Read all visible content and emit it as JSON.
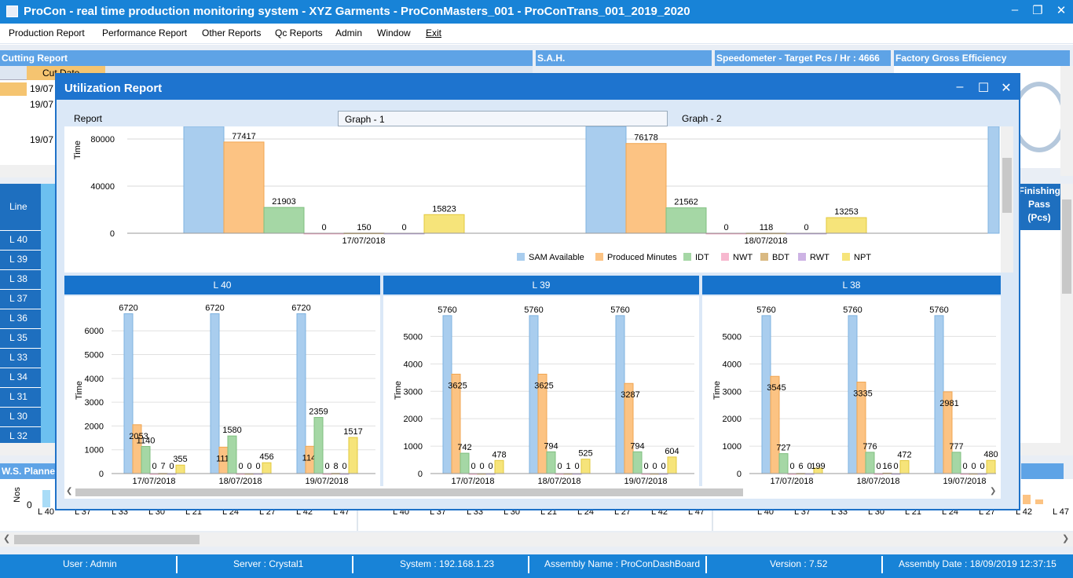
{
  "app": {
    "title": "ProCon - real time production monitoring system - XYZ Garments - ProConMasters_001 - ProConTrans_001_2019_2020"
  },
  "menu": [
    "Production Report",
    "Performance Report",
    "Other Reports",
    "Qc Reports",
    "Admin",
    "Window",
    "Exit"
  ],
  "background": {
    "cutting_report_title": "Cutting Report",
    "cutting_header_first": "Cut Date",
    "cutting_rows": [
      "19/07",
      "19/07",
      "19/07"
    ],
    "sah_title": "S.A.H.",
    "speedometer_title": "Speedometer - Target Pcs / Hr : 4666",
    "factory_eff_title": "Factory Gross Efficiency",
    "line_header": "Line",
    "lines": [
      "L 40",
      "L 39",
      "L 38",
      "L 37",
      "L 36",
      "L 35",
      "L 33",
      "L 34",
      "L 31",
      "L 30",
      "L 32"
    ],
    "finishing_header": "Finishing",
    "pass_header": "Pass",
    "pcs_header": "(Pcs)",
    "ws_planner_title": "W.S. Planne",
    "ws_ylabel": "Nos",
    "ws_zero": "0",
    "ws_xlabels_1": [
      "L 40",
      "L 37",
      "L 33",
      "L 30",
      "L 21",
      "L 24",
      "L 27",
      "L 42",
      "L 47"
    ],
    "ws_xlabels_2": [
      "L 40",
      "L 37",
      "L 33",
      "L 30",
      "L 21",
      "L 24",
      "L 27",
      "L 42",
      "L 47"
    ],
    "ws_xlabels_3": [
      "L 40",
      "L 37",
      "L 33",
      "L 30",
      "L 21",
      "L 24",
      "L 27",
      "L 42",
      "L 47"
    ]
  },
  "status": {
    "user": "User : Admin",
    "server": "Server : Crystal1",
    "system": "System : 192.168.1.23",
    "assembly": "Assembly Name : ProConDashBoard",
    "version": "Version : 7.52",
    "assembly_date": "Assembly Date : 18/09/2019 12:37:15"
  },
  "dialog": {
    "title": "Utilization Report",
    "tabs": [
      "Report",
      "Graph - 1",
      "Graph - 2"
    ],
    "active_tab": "Graph - 1",
    "legend": [
      "SAM Available",
      "Produced Minutes",
      "IDT",
      "NWT",
      "BDT",
      "RWT",
      "NPT"
    ],
    "series_colors": [
      "#a9cdee",
      "#fcc383",
      "#a5d7a5",
      "#f7b8cf",
      "#d9b982",
      "#cdb3e4",
      "#f6e47a"
    ],
    "panel_titles": [
      "L 40",
      "L 39",
      "L 38"
    ]
  },
  "chart_data": [
    {
      "type": "bar",
      "title": "",
      "ylabel": "Time",
      "xlabel": "",
      "categories": [
        "17/07/2018",
        "18/07/2018"
      ],
      "ylim": [
        0,
        90000
      ],
      "yticks": [
        0,
        40000,
        80000
      ],
      "series": [
        {
          "name": "SAM Available",
          "values": [
            null,
            null
          ]
        },
        {
          "name": "Produced Minutes",
          "values": [
            77417,
            76178
          ]
        },
        {
          "name": "IDT",
          "values": [
            21903,
            21562
          ]
        },
        {
          "name": "NWT",
          "values": [
            0,
            0
          ]
        },
        {
          "name": "BDT",
          "values": [
            150,
            118
          ]
        },
        {
          "name": "RWT",
          "values": [
            0,
            0
          ]
        },
        {
          "name": "NPT",
          "values": [
            15823,
            13253
          ]
        }
      ],
      "legend": "bottom-right"
    },
    {
      "type": "bar",
      "title": "L 40",
      "ylabel": "Time",
      "categories": [
        "17/07/2018",
        "18/07/2018",
        "19/07/2018"
      ],
      "ylim": [
        0,
        6800
      ],
      "yticks": [
        0,
        1000,
        2000,
        3000,
        4000,
        5000,
        6000
      ],
      "series": [
        {
          "name": "SAM Available",
          "values": [
            6720,
            6720,
            6720
          ]
        },
        {
          "name": "Produced Minutes",
          "values": [
            2053,
            1110,
            1146
          ]
        },
        {
          "name": "IDT",
          "values": [
            1140,
            1580,
            2359
          ]
        },
        {
          "name": "NWT",
          "values": [
            0,
            0,
            0
          ]
        },
        {
          "name": "BDT",
          "values": [
            7,
            0,
            8
          ]
        },
        {
          "name": "RWT",
          "values": [
            0,
            0,
            0
          ]
        },
        {
          "name": "NPT",
          "values": [
            355,
            456,
            1517
          ]
        }
      ]
    },
    {
      "type": "bar",
      "title": "L 39",
      "ylabel": "Time",
      "categories": [
        "17/07/2018",
        "18/07/2018",
        "19/07/2018"
      ],
      "ylim": [
        0,
        5900
      ],
      "yticks": [
        0,
        1000,
        2000,
        3000,
        4000,
        5000
      ],
      "series": [
        {
          "name": "SAM Available",
          "values": [
            5760,
            5760,
            5760
          ]
        },
        {
          "name": "Produced Minutes",
          "values": [
            3625,
            3625,
            3287
          ]
        },
        {
          "name": "IDT",
          "values": [
            742,
            794,
            794
          ]
        },
        {
          "name": "NWT",
          "values": [
            0,
            0,
            0
          ]
        },
        {
          "name": "BDT",
          "values": [
            0,
            1,
            0
          ]
        },
        {
          "name": "RWT",
          "values": [
            0,
            0,
            0
          ]
        },
        {
          "name": "NPT",
          "values": [
            478,
            525,
            604
          ]
        }
      ]
    },
    {
      "type": "bar",
      "title": "L 38",
      "ylabel": "Time",
      "categories": [
        "17/07/2018",
        "18/07/2018",
        "19/07/2018"
      ],
      "ylim": [
        0,
        5900
      ],
      "yticks": [
        0,
        1000,
        2000,
        3000,
        4000,
        5000
      ],
      "series": [
        {
          "name": "SAM Available",
          "values": [
            5760,
            5760,
            5760
          ]
        },
        {
          "name": "Produced Minutes",
          "values": [
            3545,
            3335,
            2981
          ]
        },
        {
          "name": "IDT",
          "values": [
            727,
            776,
            777
          ]
        },
        {
          "name": "NWT",
          "values": [
            0,
            0,
            0
          ]
        },
        {
          "name": "BDT",
          "values": [
            6,
            16,
            0
          ]
        },
        {
          "name": "RWT",
          "values": [
            0,
            0,
            0
          ]
        },
        {
          "name": "NPT",
          "values": [
            199,
            472,
            480
          ]
        }
      ]
    }
  ]
}
